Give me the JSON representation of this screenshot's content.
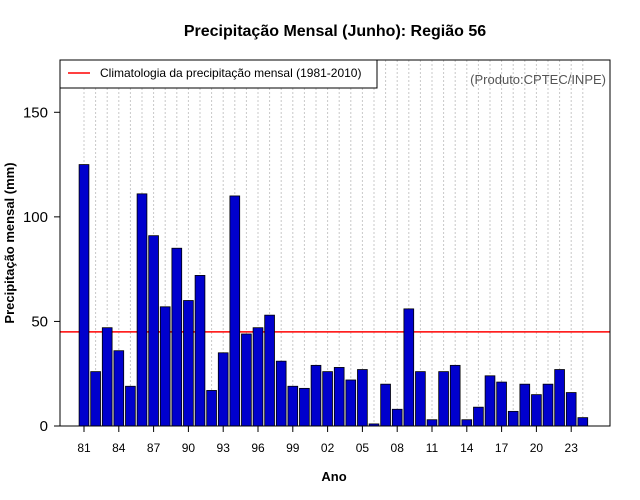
{
  "chart_data": {
    "type": "bar",
    "title": "Precipitação Mensal (Junho): Região 56",
    "xlabel": "Ano",
    "ylabel": "Precipitação mensal (mm)",
    "credit": "(Produto:CPTEC/INPE)",
    "ylim": [
      0,
      175
    ],
    "yticks": [
      0,
      50,
      100,
      150
    ],
    "categories": [
      1981,
      1982,
      1983,
      1984,
      1985,
      1986,
      1987,
      1988,
      1989,
      1990,
      1991,
      1992,
      1993,
      1994,
      1995,
      1996,
      1997,
      1998,
      1999,
      2000,
      2001,
      2002,
      2003,
      2004,
      2005,
      2006,
      2007,
      2008,
      2009,
      2010,
      2011,
      2012,
      2013,
      2014,
      2015,
      2016,
      2017,
      2018,
      2019,
      2020,
      2021,
      2022,
      2023,
      2024
    ],
    "xtick_labels": [
      {
        "year": 1981,
        "label": "81"
      },
      {
        "year": 1984,
        "label": "84"
      },
      {
        "year": 1987,
        "label": "87"
      },
      {
        "year": 1990,
        "label": "90"
      },
      {
        "year": 1993,
        "label": "93"
      },
      {
        "year": 1996,
        "label": "96"
      },
      {
        "year": 1999,
        "label": "99"
      },
      {
        "year": 2002,
        "label": "02"
      },
      {
        "year": 2005,
        "label": "05"
      },
      {
        "year": 2008,
        "label": "08"
      },
      {
        "year": 2011,
        "label": "11"
      },
      {
        "year": 2014,
        "label": "14"
      },
      {
        "year": 2017,
        "label": "17"
      },
      {
        "year": 2020,
        "label": "20"
      },
      {
        "year": 2023,
        "label": "23"
      }
    ],
    "values": [
      125,
      26,
      47,
      36,
      19,
      111,
      91,
      57,
      85,
      60,
      72,
      17,
      35,
      110,
      44,
      47,
      53,
      31,
      19,
      18,
      29,
      26,
      28,
      22,
      27,
      1,
      20,
      8,
      56,
      26,
      3,
      26,
      29,
      3,
      9,
      24,
      21,
      7,
      20,
      15,
      20,
      27,
      16,
      4
    ],
    "bar_color": "#0000cd",
    "climatology": {
      "label": "Climatologia da precipitação mensal (1981-2010)",
      "value": 45,
      "color": "#ff0000"
    },
    "legend_position": "top-left",
    "grid": "vertical dotted"
  }
}
